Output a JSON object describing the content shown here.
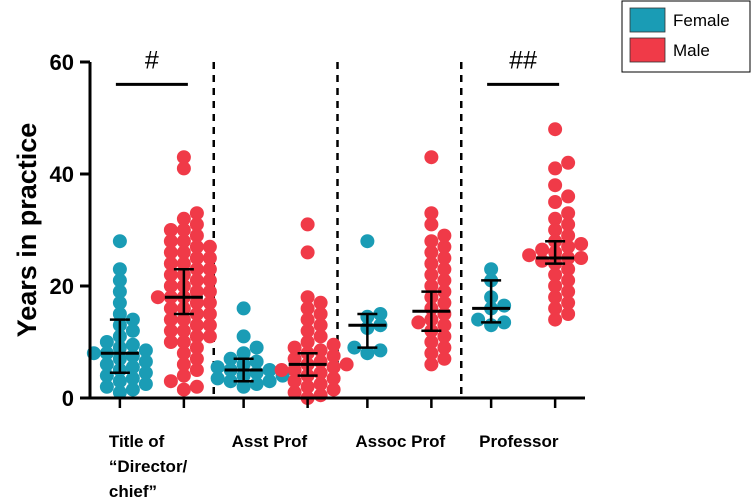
{
  "chart_data": {
    "type": "scatter",
    "ylabel": "Years in practice",
    "xlabel": "",
    "ylim": [
      0,
      60
    ],
    "yticks": [
      0,
      20,
      40,
      60
    ],
    "categories": [
      {
        "lines": [
          "Title of",
          "“Director/",
          "chief”"
        ]
      },
      {
        "lines": [
          "Asst Prof"
        ]
      },
      {
        "lines": [
          "Assoc Prof"
        ]
      },
      {
        "lines": [
          "Professor"
        ]
      }
    ],
    "colors": {
      "Female": "#1a9cb5",
      "Male": "#f03a48"
    },
    "legend": {
      "position": "top-right",
      "entries": [
        "Female",
        "Male"
      ]
    },
    "significance": [
      {
        "category": 0,
        "label": "#",
        "y": 56
      },
      {
        "category": 3,
        "label": "##",
        "y": 56
      }
    ],
    "groups": [
      {
        "category": 0,
        "sex": "Female",
        "median": 8,
        "q1": 4.5,
        "q3": 14,
        "values": [
          28,
          23,
          21,
          19,
          17,
          15,
          14,
          13,
          12,
          11,
          10,
          9.5,
          9,
          8.5,
          8,
          8,
          7.5,
          7,
          6.5,
          6,
          5.5,
          5,
          4.5,
          4,
          3.5,
          3,
          2.5,
          2,
          1.5,
          1
        ]
      },
      {
        "category": 0,
        "sex": "Male",
        "median": 18,
        "q1": 15,
        "q3": 23,
        "values": [
          43,
          41,
          33,
          32,
          31,
          30,
          30,
          29,
          28,
          28,
          27,
          27,
          26,
          26,
          25,
          25,
          24,
          24,
          23,
          23,
          22,
          22,
          21,
          21,
          20,
          20,
          19,
          19,
          18,
          18,
          18,
          17,
          17,
          16,
          16,
          15,
          15,
          14,
          14,
          13,
          13,
          12,
          12,
          11,
          11,
          10,
          10,
          9,
          8,
          7,
          6,
          5,
          4,
          3,
          2,
          1.5
        ]
      },
      {
        "category": 1,
        "sex": "Female",
        "median": 5,
        "q1": 3,
        "q3": 7,
        "values": [
          16,
          11,
          9,
          8,
          7,
          6.5,
          6,
          5.5,
          5,
          5,
          4.5,
          4,
          4,
          3.5,
          3,
          3,
          2.5,
          2
        ]
      },
      {
        "category": 1,
        "sex": "Male",
        "median": 6,
        "q1": 4,
        "q3": 8,
        "values": [
          31,
          26,
          18,
          17,
          16,
          15,
          14,
          13,
          12,
          11,
          10,
          9.5,
          9,
          8.5,
          8,
          7.5,
          7,
          6.5,
          6,
          6,
          5.5,
          5,
          5,
          4.5,
          4,
          3.5,
          3,
          2.5,
          2,
          1.5,
          1,
          0.5,
          0
        ]
      },
      {
        "category": 2,
        "sex": "Female",
        "median": 13,
        "q1": 9,
        "q3": 15,
        "values": [
          28,
          15,
          14.5,
          13,
          12.5,
          9,
          8.5,
          8
        ]
      },
      {
        "category": 2,
        "sex": "Male",
        "median": 15.5,
        "q1": 12,
        "q3": 19,
        "values": [
          43,
          33,
          31,
          29,
          28,
          27,
          26,
          25,
          24,
          23,
          22,
          21,
          20,
          19,
          18,
          17,
          16,
          15,
          14,
          13.5,
          13,
          12,
          11,
          10,
          9,
          8,
          7,
          6
        ]
      },
      {
        "category": 3,
        "sex": "Female",
        "median": 16,
        "q1": 13.5,
        "q3": 21,
        "values": [
          23,
          21,
          18,
          16.5,
          16,
          14,
          13.5,
          13
        ]
      },
      {
        "category": 3,
        "sex": "Male",
        "median": 25,
        "q1": 24,
        "q3": 28,
        "values": [
          48,
          42,
          41,
          38,
          36,
          35,
          33,
          32,
          31,
          30,
          29,
          28,
          27.5,
          27,
          26.5,
          26,
          25.5,
          25,
          25,
          24.5,
          24,
          23,
          22,
          21,
          20,
          19,
          18,
          17,
          16,
          15,
          14
        ]
      }
    ]
  }
}
